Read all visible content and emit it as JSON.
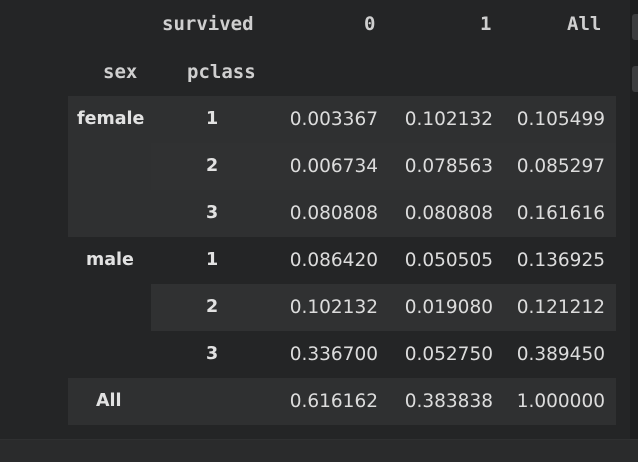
{
  "header": {
    "columns_name": "survived",
    "col_0": "0",
    "col_1": "1",
    "col_all": "All",
    "index_name_sex": "sex",
    "index_name_pclass": "pclass"
  },
  "rows": [
    {
      "sex": "female",
      "pclass": "1",
      "v0": "0.003367",
      "v1": "0.102132",
      "vall": "0.105499"
    },
    {
      "sex": "",
      "pclass": "2",
      "v0": "0.006734",
      "v1": "0.078563",
      "vall": "0.085297"
    },
    {
      "sex": "",
      "pclass": "3",
      "v0": "0.080808",
      "v1": "0.080808",
      "vall": "0.161616"
    },
    {
      "sex": "male",
      "pclass": "1",
      "v0": "0.086420",
      "v1": "0.050505",
      "vall": "0.136925"
    },
    {
      "sex": "",
      "pclass": "2",
      "v0": "0.102132",
      "v1": "0.019080",
      "vall": "0.121212"
    },
    {
      "sex": "",
      "pclass": "3",
      "v0": "0.336700",
      "v1": "0.052750",
      "vall": "0.389450"
    },
    {
      "sex": "All",
      "pclass": "",
      "v0": "0.616162",
      "v1": "0.383838",
      "vall": "1.000000"
    }
  ]
}
